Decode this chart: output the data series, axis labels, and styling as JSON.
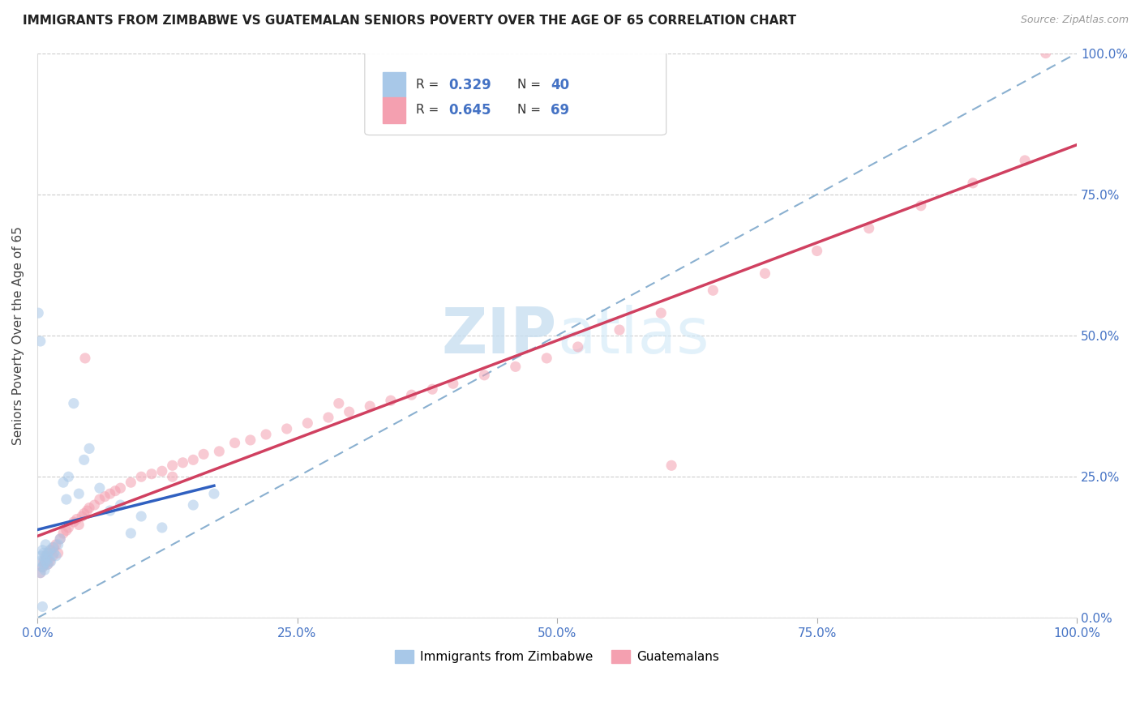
{
  "title": "IMMIGRANTS FROM ZIMBABWE VS GUATEMALAN SENIORS POVERTY OVER THE AGE OF 65 CORRELATION CHART",
  "source": "Source: ZipAtlas.com",
  "ylabel": "Seniors Poverty Over the Age of 65",
  "xlim": [
    0.0,
    1.0
  ],
  "ylim": [
    0.0,
    1.0
  ],
  "xticks": [
    0.0,
    0.25,
    0.5,
    0.75,
    1.0
  ],
  "xtick_labels": [
    "0.0%",
    "25.0%",
    "50.0%",
    "75.0%",
    "100.0%"
  ],
  "ytick_labels_right": [
    "0.0%",
    "25.0%",
    "50.0%",
    "75.0%",
    "100.0%"
  ],
  "watermark": "ZIPatlas",
  "blue_color": "#a8c8e8",
  "pink_color": "#f4a0b0",
  "blue_line_color": "#3060c0",
  "pink_line_color": "#d04060",
  "diag_color": "#8ab0d0",
  "dot_alpha": 0.55,
  "dot_size": 90,
  "blue_r": 0.329,
  "blue_n": 40,
  "pink_r": 0.645,
  "pink_n": 69,
  "blue_scatter_x": [
    0.002,
    0.003,
    0.004,
    0.005,
    0.005,
    0.006,
    0.006,
    0.007,
    0.007,
    0.008,
    0.008,
    0.009,
    0.01,
    0.01,
    0.011,
    0.012,
    0.013,
    0.015,
    0.016,
    0.018,
    0.02,
    0.022,
    0.025,
    0.028,
    0.03,
    0.035,
    0.04,
    0.045,
    0.05,
    0.06,
    0.07,
    0.08,
    0.09,
    0.1,
    0.12,
    0.15,
    0.17,
    0.001,
    0.003,
    0.005
  ],
  "blue_scatter_y": [
    0.1,
    0.08,
    0.11,
    0.09,
    0.12,
    0.095,
    0.115,
    0.085,
    0.105,
    0.1,
    0.13,
    0.11,
    0.095,
    0.115,
    0.105,
    0.12,
    0.1,
    0.125,
    0.115,
    0.11,
    0.13,
    0.14,
    0.24,
    0.21,
    0.25,
    0.38,
    0.22,
    0.28,
    0.3,
    0.23,
    0.19,
    0.2,
    0.15,
    0.18,
    0.16,
    0.2,
    0.22,
    0.54,
    0.49,
    0.02
  ],
  "pink_scatter_x": [
    0.003,
    0.005,
    0.006,
    0.007,
    0.008,
    0.009,
    0.01,
    0.011,
    0.012,
    0.013,
    0.015,
    0.016,
    0.018,
    0.02,
    0.022,
    0.025,
    0.028,
    0.03,
    0.035,
    0.038,
    0.04,
    0.043,
    0.045,
    0.048,
    0.05,
    0.055,
    0.06,
    0.065,
    0.07,
    0.075,
    0.08,
    0.09,
    0.1,
    0.11,
    0.12,
    0.13,
    0.14,
    0.15,
    0.16,
    0.175,
    0.19,
    0.205,
    0.22,
    0.24,
    0.26,
    0.28,
    0.3,
    0.32,
    0.34,
    0.36,
    0.38,
    0.4,
    0.43,
    0.46,
    0.49,
    0.52,
    0.56,
    0.6,
    0.65,
    0.7,
    0.75,
    0.8,
    0.85,
    0.9,
    0.95,
    0.046,
    0.13,
    0.29,
    0.61
  ],
  "pink_scatter_y": [
    0.08,
    0.09,
    0.1,
    0.095,
    0.11,
    0.105,
    0.095,
    0.115,
    0.1,
    0.12,
    0.11,
    0.125,
    0.13,
    0.115,
    0.14,
    0.15,
    0.155,
    0.16,
    0.17,
    0.175,
    0.165,
    0.18,
    0.185,
    0.19,
    0.195,
    0.2,
    0.21,
    0.215,
    0.22,
    0.225,
    0.23,
    0.24,
    0.25,
    0.255,
    0.26,
    0.27,
    0.275,
    0.28,
    0.29,
    0.295,
    0.31,
    0.315,
    0.325,
    0.335,
    0.345,
    0.355,
    0.365,
    0.375,
    0.385,
    0.395,
    0.405,
    0.415,
    0.43,
    0.445,
    0.46,
    0.48,
    0.51,
    0.54,
    0.58,
    0.61,
    0.65,
    0.69,
    0.73,
    0.77,
    0.81,
    0.46,
    0.25,
    0.38,
    0.27
  ]
}
